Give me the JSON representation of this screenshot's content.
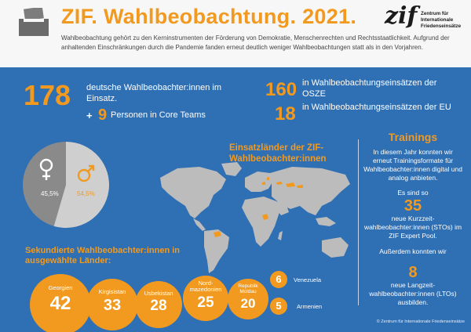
{
  "header": {
    "title": "ZIF. Wahlbeobachtung. 2021.",
    "intro": "Wahlbeobachtung gehört zu den Kerninstrumenten der Förderung von Demokratie, Menschenrechten und Rechtsstaatlichkeit. Aufgrund der anhaltenden Einschränkungen durch die Pandemie fanden erneut deutlich weniger Wahlbeobachtungen statt als in den Vorjahren.",
    "logo_word": "zif",
    "logo_text": "Zentrum für\nInternationale\nFriedenseinsätze",
    "ballot_icon": "ballot-box-icon"
  },
  "stats": {
    "observers_value": "178",
    "observers_label": "deutsche Wahlbeobachter:innen im Einsatz.",
    "plus_sign": "+",
    "core_value": "9",
    "core_label": "Personen in Core Teams",
    "osce_value": "160",
    "osce_label": "in Wahlbeobachtungseinsätzen der OSZE",
    "eu_value": "18",
    "eu_label": "in Wahlbeobachtungseinsätzen der EU"
  },
  "gender_chart": {
    "female_label": "45,5%",
    "male_label": "54,5%",
    "female_icon": "female-symbol-icon",
    "male_icon": "male-symbol-icon",
    "colors": {
      "female": "#8a8a8a",
      "male": "#cfcfcf",
      "accent": "#f29a1f"
    }
  },
  "chart_data": {
    "type": "pie",
    "categories": [
      "Frauen",
      "Männer"
    ],
    "values": [
      45.5,
      54.5
    ]
  },
  "map": {
    "title": "Einsatzländer der ZIF-Wahlbeobachter:innen",
    "colors": {
      "land": "#bcbcbc",
      "highlight": "#f29a1f"
    }
  },
  "secondments": {
    "title": "Sekundierte Wahlbeobachter:innen in ausgewählte Länder:",
    "countries": [
      {
        "name": "Georgien",
        "value": "42"
      },
      {
        "name": "Kirgisistan",
        "value": "33"
      },
      {
        "name": "Usbekistan",
        "value": "28"
      },
      {
        "name": "Nord-mazedonien",
        "value": "25"
      },
      {
        "name": "Republik Moldau",
        "value": "20"
      }
    ],
    "small": [
      {
        "name": "Venezuela",
        "value": "6"
      },
      {
        "name": "Armenien",
        "value": "5"
      }
    ]
  },
  "trainings": {
    "title": "Trainings",
    "intro": "In diesem Jahr konnten wir erneut Trainingsformate für Wahlbeobachter:innen digital und analog anbieten.",
    "lead1": "Es sind so",
    "short_value": "35",
    "short_text": "neue Kurzzeit-wahlbeobachter:innen (STOs) im ZIF Expert Pool.",
    "lead2": "Außerdem konnten wir",
    "long_value": "8",
    "long_text": "neue Langzeit-wahlbeobachter:innen (LTOs) ausbilden."
  },
  "footer": {
    "copyright": "© Zentrum für Internationale Friedenseinsätze"
  }
}
